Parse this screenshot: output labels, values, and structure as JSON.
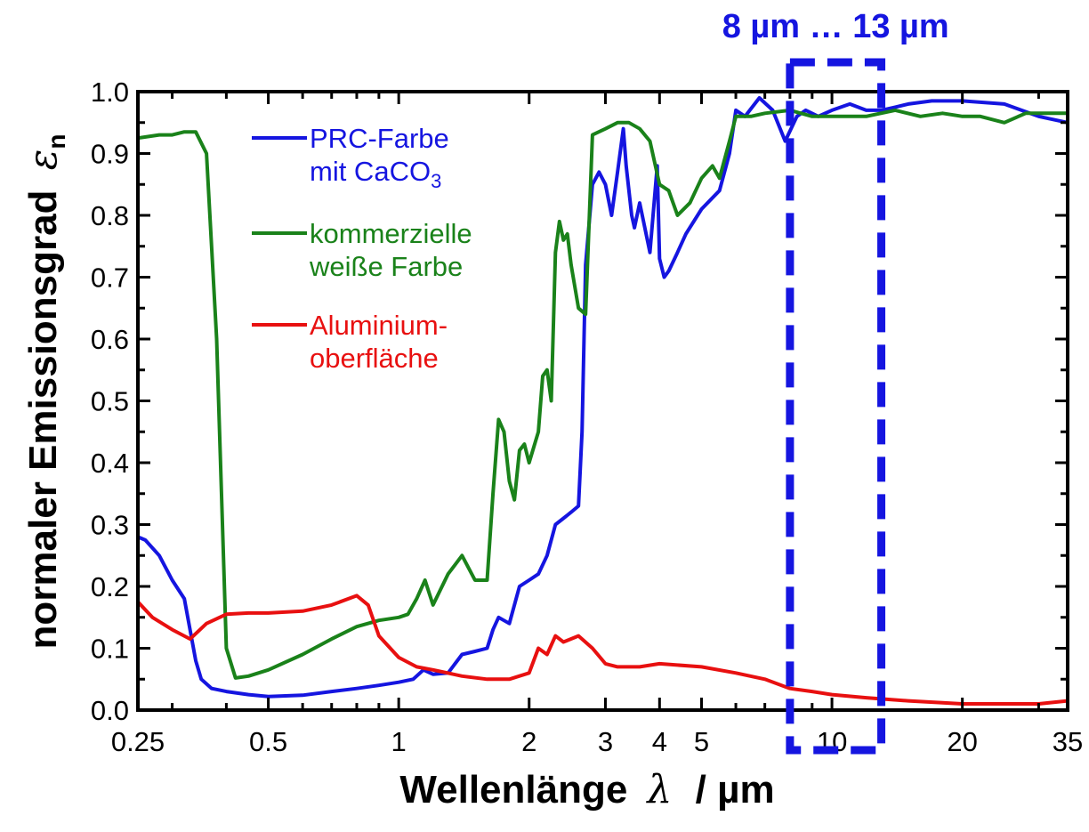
{
  "chart_data": {
    "type": "line",
    "xlabel": "Wellenlänge",
    "xlabel_symbol": "λ",
    "xlabel_unit": "/  µm",
    "ylabel": "normaler  Emissionsgrad",
    "ylabel_symbol": "ε",
    "ylabel_subscript": "n",
    "x_scale": "log",
    "xlim": [
      0.25,
      35
    ],
    "ylim": [
      0,
      1.0
    ],
    "grid": false,
    "legend_position": "upper-left",
    "x_ticks": [
      {
        "value": 0.25,
        "label": "0.25"
      },
      {
        "value": 0.5,
        "label": "0.5"
      },
      {
        "value": 1,
        "label": "1"
      },
      {
        "value": 2,
        "label": "2"
      },
      {
        "value": 3,
        "label": "3"
      },
      {
        "value": 4,
        "label": "4"
      },
      {
        "value": 5,
        "label": "5"
      },
      {
        "value": 10,
        "label": "10"
      },
      {
        "value": 20,
        "label": "20"
      },
      {
        "value": 35,
        "label": "35"
      }
    ],
    "y_ticks": [
      {
        "value": 0.0,
        "label": "0.0"
      },
      {
        "value": 0.1,
        "label": "0.1"
      },
      {
        "value": 0.2,
        "label": "0.2"
      },
      {
        "value": 0.3,
        "label": "0.3"
      },
      {
        "value": 0.4,
        "label": "0.4"
      },
      {
        "value": 0.5,
        "label": "0.5"
      },
      {
        "value": 0.6,
        "label": "0.6"
      },
      {
        "value": 0.7,
        "label": "0.7"
      },
      {
        "value": 0.8,
        "label": "0.8"
      },
      {
        "value": 0.9,
        "label": "0.9"
      },
      {
        "value": 1.0,
        "label": "1.0"
      }
    ],
    "series": [
      {
        "name_line1": "PRC-Farbe",
        "name_line2_prefix": "mit CaCO",
        "name_line2_subscript": "3",
        "color": "#1515e0",
        "x": [
          0.25,
          0.26,
          0.28,
          0.3,
          0.32,
          0.34,
          0.35,
          0.37,
          0.4,
          0.45,
          0.5,
          0.6,
          0.7,
          0.8,
          0.9,
          1.0,
          1.08,
          1.14,
          1.2,
          1.3,
          1.4,
          1.5,
          1.6,
          1.65,
          1.7,
          1.8,
          1.9,
          2.0,
          2.1,
          2.2,
          2.3,
          2.4,
          2.5,
          2.6,
          2.65,
          2.7,
          2.8,
          2.9,
          3.0,
          3.1,
          3.2,
          3.3,
          3.35,
          3.45,
          3.5,
          3.6,
          3.8,
          3.95,
          4.0,
          4.1,
          4.2,
          4.4,
          4.6,
          5.0,
          5.5,
          5.8,
          6.0,
          6.3,
          6.8,
          7.3,
          7.8,
          8.3,
          8.7,
          9.3,
          10,
          11,
          12,
          13,
          14,
          15,
          17,
          20,
          25,
          30,
          35
        ],
        "values": [
          0.28,
          0.275,
          0.25,
          0.21,
          0.18,
          0.08,
          0.05,
          0.035,
          0.03,
          0.025,
          0.022,
          0.024,
          0.03,
          0.035,
          0.04,
          0.045,
          0.05,
          0.065,
          0.058,
          0.06,
          0.09,
          0.095,
          0.1,
          0.13,
          0.15,
          0.14,
          0.2,
          0.21,
          0.22,
          0.25,
          0.3,
          0.31,
          0.32,
          0.33,
          0.45,
          0.72,
          0.85,
          0.87,
          0.85,
          0.8,
          0.87,
          0.94,
          0.88,
          0.8,
          0.78,
          0.82,
          0.74,
          0.88,
          0.73,
          0.7,
          0.71,
          0.74,
          0.77,
          0.81,
          0.84,
          0.9,
          0.97,
          0.96,
          0.99,
          0.97,
          0.92,
          0.96,
          0.97,
          0.96,
          0.97,
          0.98,
          0.97,
          0.97,
          0.975,
          0.98,
          0.985,
          0.985,
          0.98,
          0.96,
          0.95
        ]
      },
      {
        "name_line1": "kommerzielle",
        "name_line2": "weiße Farbe",
        "color": "#1a821a",
        "x": [
          0.25,
          0.28,
          0.3,
          0.32,
          0.34,
          0.36,
          0.38,
          0.4,
          0.42,
          0.45,
          0.5,
          0.6,
          0.7,
          0.8,
          0.9,
          1.0,
          1.05,
          1.1,
          1.15,
          1.2,
          1.3,
          1.4,
          1.5,
          1.6,
          1.65,
          1.7,
          1.75,
          1.8,
          1.85,
          1.9,
          1.95,
          2.0,
          2.1,
          2.15,
          2.2,
          2.25,
          2.3,
          2.35,
          2.4,
          2.45,
          2.5,
          2.6,
          2.7,
          2.8,
          3.0,
          3.2,
          3.4,
          3.6,
          3.8,
          4.0,
          4.2,
          4.4,
          4.7,
          5.0,
          5.3,
          5.5,
          5.8,
          6.0,
          6.5,
          7,
          8,
          9,
          10,
          12,
          14,
          16,
          18,
          20,
          22,
          25,
          28,
          30,
          35
        ],
        "values": [
          0.925,
          0.93,
          0.93,
          0.935,
          0.935,
          0.9,
          0.6,
          0.1,
          0.052,
          0.055,
          0.065,
          0.09,
          0.115,
          0.135,
          0.145,
          0.15,
          0.155,
          0.18,
          0.21,
          0.17,
          0.22,
          0.25,
          0.21,
          0.21,
          0.35,
          0.47,
          0.45,
          0.37,
          0.34,
          0.42,
          0.43,
          0.4,
          0.45,
          0.54,
          0.55,
          0.5,
          0.74,
          0.79,
          0.76,
          0.77,
          0.72,
          0.65,
          0.64,
          0.93,
          0.94,
          0.95,
          0.95,
          0.94,
          0.92,
          0.85,
          0.84,
          0.8,
          0.82,
          0.86,
          0.88,
          0.86,
          0.92,
          0.96,
          0.96,
          0.965,
          0.97,
          0.96,
          0.96,
          0.96,
          0.97,
          0.96,
          0.965,
          0.96,
          0.96,
          0.95,
          0.965,
          0.965,
          0.965
        ]
      },
      {
        "name_line1": "Aluminium-",
        "name_line2": "oberfläche",
        "color": "#e81010",
        "x": [
          0.25,
          0.27,
          0.3,
          0.33,
          0.36,
          0.4,
          0.45,
          0.5,
          0.6,
          0.7,
          0.8,
          0.85,
          0.9,
          1.0,
          1.1,
          1.2,
          1.4,
          1.6,
          1.8,
          2.0,
          2.1,
          2.2,
          2.3,
          2.4,
          2.6,
          2.8,
          3.0,
          3.2,
          3.4,
          3.6,
          4.0,
          5.0,
          6.0,
          7.0,
          8.0,
          9.0,
          10,
          12,
          15,
          18,
          20,
          25,
          30,
          35
        ],
        "values": [
          0.175,
          0.15,
          0.13,
          0.115,
          0.14,
          0.155,
          0.157,
          0.157,
          0.16,
          0.17,
          0.185,
          0.17,
          0.12,
          0.085,
          0.07,
          0.065,
          0.055,
          0.05,
          0.05,
          0.06,
          0.1,
          0.09,
          0.12,
          0.11,
          0.12,
          0.1,
          0.075,
          0.07,
          0.07,
          0.07,
          0.075,
          0.07,
          0.06,
          0.05,
          0.035,
          0.03,
          0.025,
          0.02,
          0.015,
          0.012,
          0.01,
          0.01,
          0.01,
          0.015
        ]
      }
    ],
    "annotations": [
      {
        "text": "8 µm … 13 µm",
        "x_range": [
          8,
          13
        ],
        "style": "dashed-box",
        "color": "#1515e0"
      }
    ]
  }
}
